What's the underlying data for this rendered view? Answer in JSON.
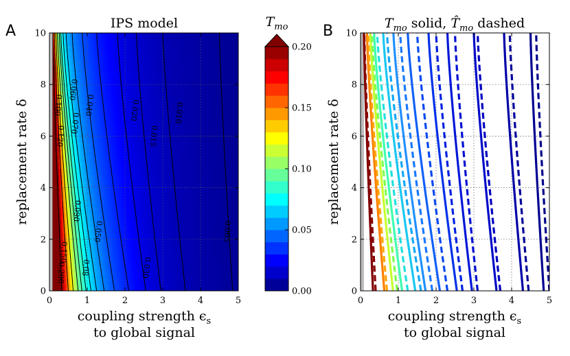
{
  "chart_data": [
    {
      "panel_label": "A",
      "type": "heatmap",
      "title": "IPS model",
      "xlabel_line1": "coupling strength ϵ",
      "xlabel_sub": "s",
      "xlabel_line2": "to global signal",
      "ylabel": "replacement rate δ",
      "xlim": [
        0,
        5
      ],
      "ylim": [
        0,
        10
      ],
      "xticks": [
        "0",
        "1",
        "2",
        "3",
        "4",
        "5"
      ],
      "yticks": [
        "0",
        "2",
        "4",
        "6",
        "8",
        "10"
      ],
      "grid": true,
      "masked_region": {
        "x_max": 0.08,
        "color": "#bdbdbd"
      },
      "colorbar": {
        "label": "T",
        "label_sub": "mo",
        "range": [
          0,
          0.2
        ],
        "ticks": [
          "0.00",
          "0.05",
          "0.10",
          "0.15",
          "0.20"
        ],
        "extend": "max"
      },
      "contour_levels": [
        {
          "level": 0.2,
          "x_at_0": 0.33,
          "x_at_10": 0.09,
          "label": "0.200",
          "label_x": 0.3,
          "label_y": 0.7
        },
        {
          "level": 0.15,
          "x_at_0": 0.5,
          "x_at_10": 0.13,
          "label": "0.150",
          "label_x": 0.37,
          "label_y": 1.5
        },
        {
          "level": 0.12,
          "x_at_0": 0.63,
          "x_at_10": 0.17,
          "label": "0.120",
          "label_x": 0.28,
          "label_y": 6.0
        },
        {
          "level": 0.1,
          "x_at_0": 0.76,
          "x_at_10": 0.21,
          "label": "0.100",
          "label_x": 0.22,
          "label_y": 7.2
        },
        {
          "level": 0.09,
          "x_at_0": 0.86,
          "x_at_10": 0.26,
          "label": "0.090",
          "label_x": 0.72,
          "label_y": 3.1
        },
        {
          "level": 0.08,
          "x_at_0": 0.97,
          "x_at_10": 0.3,
          "label": "0.08",
          "label_x": 0.95,
          "label_y": 0.9
        },
        {
          "level": 0.07,
          "x_at_0": 1.1,
          "x_at_10": 0.36,
          "label": "0.070",
          "label_x": 0.67,
          "label_y": 6.5
        },
        {
          "level": 0.06,
          "x_at_0": 1.25,
          "x_at_10": 0.44,
          "label": "0.060",
          "label_x": 0.62,
          "label_y": 7.8
        },
        {
          "level": 0.05,
          "x_at_0": 1.45,
          "x_at_10": 0.6,
          "label": "0.050",
          "label_x": 1.28,
          "label_y": 2.3
        },
        {
          "level": 0.04,
          "x_at_0": 1.72,
          "x_at_10": 0.87,
          "label": "0.040",
          "label_x": 1.05,
          "label_y": 7.2
        },
        {
          "level": 0.03,
          "x_at_0": 2.1,
          "x_at_10": 1.25,
          "label": "0.030",
          "label_x": 2.56,
          "label_y": 0.9
        },
        {
          "level": 0.02,
          "x_at_0": 2.55,
          "x_at_10": 1.8,
          "label": "0.020",
          "label_x": 2.25,
          "label_y": 7.0
        },
        {
          "level": 0.015,
          "x_at_0": 2.95,
          "x_at_10": 2.3,
          "label": "0.015",
          "label_x": 2.75,
          "label_y": 6.0
        },
        {
          "level": 0.01,
          "x_at_0": 3.6,
          "x_at_10": 3.0,
          "label": "0.010",
          "label_x": 3.42,
          "label_y": 6.9
        },
        {
          "level": 0.005,
          "x_at_0": 4.85,
          "x_at_10": 4.5,
          "label": "0.005",
          "label_x": 4.7,
          "label_y": 2.3
        }
      ]
    },
    {
      "panel_label": "B",
      "type": "line",
      "title_line_T": "T",
      "title_sub_1": "mo",
      "title_mid": " solid, ",
      "title_line_That": "T̂",
      "title_sub_2": "mo",
      "title_end": " dashed",
      "xlabel_line1": "coupling strength ϵ",
      "xlabel_sub": "s",
      "xlabel_line2": "to global signal",
      "ylabel": "replacement rate δ",
      "xlim": [
        0,
        5
      ],
      "ylim": [
        0,
        10
      ],
      "xticks": [
        "0",
        "1",
        "2",
        "3",
        "4",
        "5"
      ],
      "yticks": [
        "0",
        "2",
        "4",
        "6",
        "8",
        "10"
      ],
      "grid": true,
      "series": [
        {
          "style": "solid",
          "color": "#7f0000",
          "x_at_0": 0.33,
          "x_at_10": 0.09
        },
        {
          "style": "dashed",
          "color": "#8b0000",
          "x_at_0": 0.4,
          "x_at_10": 0.1
        },
        {
          "style": "solid",
          "color": "#ff7f00",
          "x_at_0": 0.63,
          "x_at_10": 0.17
        },
        {
          "style": "dashed",
          "color": "#ffa500",
          "x_at_0": 0.7,
          "x_at_10": 0.2
        },
        {
          "style": "solid",
          "color": "#c8ff30",
          "x_at_0": 0.86,
          "x_at_10": 0.26
        },
        {
          "style": "dashed",
          "color": "#7fff50",
          "x_at_0": 0.97,
          "x_at_10": 0.3
        },
        {
          "style": "solid",
          "color": "#40ffb0",
          "x_at_0": 1.1,
          "x_at_10": 0.36
        },
        {
          "style": "dashed",
          "color": "#20e0e0",
          "x_at_0": 1.25,
          "x_at_10": 0.44
        },
        {
          "style": "solid",
          "color": "#18c8f0",
          "x_at_0": 1.45,
          "x_at_10": 0.6
        },
        {
          "style": "dashed",
          "color": "#10a8f8",
          "x_at_0": 1.6,
          "x_at_10": 0.7
        },
        {
          "style": "solid",
          "color": "#2090ff",
          "x_at_0": 1.72,
          "x_at_10": 0.87
        },
        {
          "style": "dashed",
          "color": "#1878ff",
          "x_at_0": 1.9,
          "x_at_10": 1.05
        },
        {
          "style": "solid",
          "color": "#1060f8",
          "x_at_0": 2.1,
          "x_at_10": 1.25
        },
        {
          "style": "dashed",
          "color": "#0848f0",
          "x_at_0": 2.3,
          "x_at_10": 1.5
        },
        {
          "style": "solid",
          "color": "#0030e8",
          "x_at_0": 2.55,
          "x_at_10": 1.8
        },
        {
          "style": "dashed",
          "color": "#0020e0",
          "x_at_0": 2.7,
          "x_at_10": 2.0
        },
        {
          "style": "solid",
          "color": "#0018d8",
          "x_at_0": 2.95,
          "x_at_10": 2.3
        },
        {
          "style": "dashed",
          "color": "#0010d0",
          "x_at_0": 3.1,
          "x_at_10": 2.5
        },
        {
          "style": "solid",
          "color": "#0008c8",
          "x_at_0": 3.6,
          "x_at_10": 3.0
        },
        {
          "style": "dashed",
          "color": "#0000c0",
          "x_at_0": 3.7,
          "x_at_10": 3.1
        },
        {
          "style": "solid",
          "color": "#0000a8",
          "x_at_0": 4.3,
          "x_at_10": 3.8
        },
        {
          "style": "dashed",
          "color": "#00009a",
          "x_at_0": 4.45,
          "x_at_10": 3.95
        },
        {
          "style": "solid",
          "color": "#000090",
          "x_at_0": 4.85,
          "x_at_10": 4.5
        },
        {
          "style": "dashed",
          "color": "#00008b",
          "x_at_0": 5.0,
          "x_at_10": 4.65
        }
      ]
    }
  ]
}
